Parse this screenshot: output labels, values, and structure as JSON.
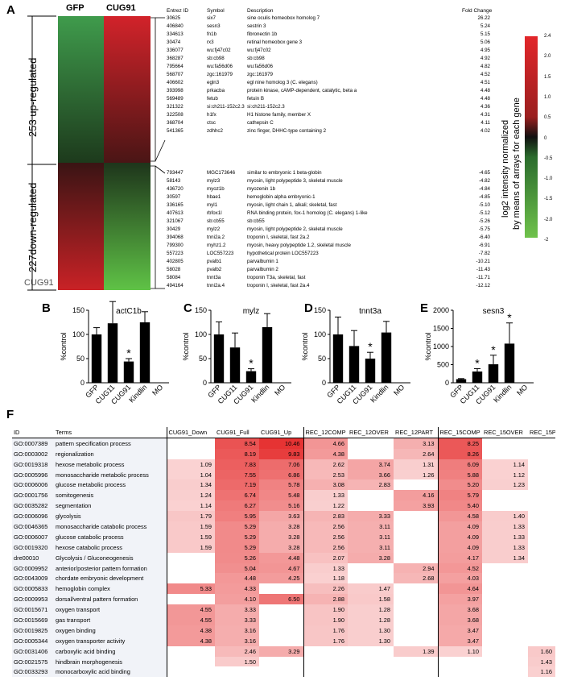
{
  "panel_labels": {
    "a": "A",
    "b": "B",
    "c": "C",
    "d": "D",
    "e": "E",
    "f": "F"
  },
  "heatmap": {
    "col_labels": [
      "GFP",
      "CUG91"
    ],
    "group_up": "253 up-regulated",
    "group_down": "227down-regulated",
    "overlay_text": "CUG91"
  },
  "gene_table": {
    "headers": [
      "Entrez ID",
      "Symbol",
      "Description",
      "Fold Change"
    ],
    "up": [
      [
        "30625",
        "six7",
        "sine oculis homeobox homolog 7",
        "26.22"
      ],
      [
        "406840",
        "sesn3",
        "sestrin 3",
        "5.24"
      ],
      [
        "334613",
        "fn1b",
        "fibronectin 1b",
        "5.15"
      ],
      [
        "30474",
        "rx3",
        "retinal homeobox gene 3",
        "5.06"
      ],
      [
        "336077",
        "wu:fj47c02",
        "wu:fj47c02",
        "4.95"
      ],
      [
        "368287",
        "sb:cb98",
        "sb:cb98",
        "4.92"
      ],
      [
        "795664",
        "wu:fa56d06",
        "wu:fa56d06",
        "4.82"
      ],
      [
        "568707",
        "zgc:161979",
        "zgc:161979",
        "4.52"
      ],
      [
        "406602",
        "egln3",
        "egl nine homolog 3 (C. elegans)",
        "4.51"
      ],
      [
        "393998",
        "prkacba",
        "protein kinase, cAMP-dependent, catalytic, beta a",
        "4.48"
      ],
      [
        "569489",
        "fetub",
        "fetuin B",
        "4.48"
      ],
      [
        "321322",
        "si:ch211-152c2.3",
        "si:ch211-152c2.3",
        "4.36"
      ],
      [
        "322508",
        "h1fx",
        "H1 histone family, member X",
        "4.31"
      ],
      [
        "368704",
        "ctsc",
        "cathepsin C",
        "4.11"
      ],
      [
        "541365",
        "zdhhc2",
        "zinc finger, DHHC-type containing 2",
        "4.02"
      ]
    ],
    "down": [
      [
        "793447",
        "MGC173646",
        "similar to embryonic 1 beta-globin",
        "-4.65"
      ],
      [
        "58143",
        "mylz3",
        "myosin, light polypeptide 3, skeletal muscle",
        "-4.82"
      ],
      [
        "436720",
        "myoz1b",
        "myozenin 1b",
        "-4.84"
      ],
      [
        "30597",
        "hbae1",
        "hemoglobin alpha embryonic-1",
        "-4.85"
      ],
      [
        "336165",
        "myl1",
        "myosin, light chain 1, alkali; skeletal, fast",
        "-5.10"
      ],
      [
        "407613",
        "rbfox1l",
        "RNA binding protein, fox-1 homolog (C. elegans) 1-like",
        "-5.12"
      ],
      [
        "321067",
        "sb:cb55",
        "sb:cb55",
        "-5.26"
      ],
      [
        "30429",
        "mylz2",
        "myosin, light polypeptide 2, skeletal muscle",
        "-5.75"
      ],
      [
        "394068",
        "tnni2a.2",
        "troponin I, skeletal, fast 2a.2",
        "-6.40"
      ],
      [
        "799300",
        "myhz1.2",
        "myosin, heavy polypeptide 1.2, skeletal muscle",
        "-6.91"
      ],
      [
        "557223",
        "LOC557223",
        "hypothetical protein LOC557223",
        "-7.82"
      ],
      [
        "402805",
        "pvalb1",
        "parvalbumin 1",
        "-10.21"
      ],
      [
        "58028",
        "pvalb2",
        "parvalbumin 2",
        "-11.43"
      ],
      [
        "58084",
        "tnnt3a",
        "troponin T3a, skeletal, fast",
        "-11.71"
      ],
      [
        "494164",
        "tnni2a.4",
        "troponin I, skeletal, fast 2a.4",
        "-12.12"
      ]
    ]
  },
  "colorbar": {
    "ticks": [
      "2.4",
      "2.0",
      "1.5",
      "1.0",
      "0.5",
      "0",
      "-0.5",
      "-1.0",
      "-1.5",
      "-2.0",
      "-2"
    ],
    "label_line1": "log2 intensity normalized",
    "label_line2": "by means of arrays for each gene",
    "colors": [
      "#e2262a",
      "#111111",
      "#6fc24b"
    ]
  },
  "chart_data": [
    {
      "type": "bar",
      "title": "actC1b",
      "ylabel": "%control",
      "categories": [
        "GFP",
        "CUG11",
        "CUG91",
        "Kindlin",
        "MO"
      ],
      "values": [
        100,
        123,
        44,
        125,
        null
      ],
      "errors": [
        14,
        45,
        6,
        22,
        null
      ],
      "ylim": [
        0,
        150
      ],
      "yticks": [
        "0",
        "50",
        "100",
        "150"
      ],
      "star_index": 2
    },
    {
      "type": "bar",
      "title": "mylz",
      "ylabel": "%control",
      "categories": [
        "GFP",
        "CUG11",
        "CUG91",
        "Kindlin",
        "MO"
      ],
      "values": [
        100,
        73,
        24,
        115,
        null
      ],
      "errors": [
        26,
        30,
        5,
        28,
        null
      ],
      "ylim": [
        0,
        150
      ],
      "yticks": [
        "0",
        "50",
        "100",
        "150"
      ],
      "star_index": 2
    },
    {
      "type": "bar",
      "title": "tnnt3a",
      "ylabel": "%control",
      "categories": [
        "GFP",
        "CUG11",
        "CUG91",
        "Kindlin",
        "MO"
      ],
      "values": [
        100,
        76,
        50,
        104,
        null
      ],
      "errors": [
        36,
        32,
        13,
        23,
        null
      ],
      "ylim": [
        0,
        150
      ],
      "yticks": [
        "0",
        "50",
        "100",
        "150"
      ],
      "star_index": 2
    },
    {
      "type": "bar",
      "title": "sesn3",
      "ylabel": "%control",
      "categories": [
        "GFP",
        "CUG11",
        "CUG91",
        "Kindlin",
        "MO"
      ],
      "values": [
        100,
        310,
        510,
        1080,
        null
      ],
      "errors": [
        15,
        80,
        250,
        570,
        null
      ],
      "ylim": [
        0,
        2000
      ],
      "yticks": [
        "0",
        "500",
        "1000",
        "1500",
        "2000"
      ],
      "star_indices": [
        1,
        2,
        3
      ]
    }
  ],
  "table_f": {
    "headers": [
      "ID",
      "Terms",
      "CUG91_Down",
      "CUG91_Full",
      "CUG91_Up",
      "REC_12COMP",
      "REC_12OVER",
      "REC_12PART",
      "REC_15COMP",
      "REC_15OVER",
      "REC_15PART"
    ],
    "rows": [
      [
        "GO:0007389",
        "pattern specification process",
        "",
        "8.54",
        "10.46",
        "4.66",
        "",
        "3.13",
        "8.25",
        "",
        ""
      ],
      [
        "GO:0003002",
        "regionalization",
        "",
        "8.19",
        "9.83",
        "4.38",
        "",
        "2.64",
        "8.26",
        "",
        ""
      ],
      [
        "GO:0019318",
        "hexose metabolic process",
        "1.09",
        "7.83",
        "7.06",
        "2.62",
        "3.74",
        "1.31",
        "6.09",
        "1.14",
        ""
      ],
      [
        "GO:0005996",
        "monosaccharide metabolic process",
        "1.04",
        "7.55",
        "6.86",
        "2.53",
        "3.66",
        "1.26",
        "5.88",
        "1.12",
        ""
      ],
      [
        "GO:0006006",
        "glucose metabolic process",
        "1.34",
        "7.19",
        "5.78",
        "3.08",
        "2.83",
        "",
        "5.20",
        "1.23",
        ""
      ],
      [
        "GO:0001756",
        "somitogenesis",
        "1.24",
        "6.74",
        "5.48",
        "1.33",
        "",
        "4.16",
        "5.79",
        "",
        ""
      ],
      [
        "GO:0035282",
        "segmentation",
        "1.14",
        "6.27",
        "5.16",
        "1.22",
        "",
        "3.93",
        "5.40",
        "",
        ""
      ],
      [
        "GO:0006096",
        "glycolysis",
        "1.79",
        "5.95",
        "3.63",
        "2.83",
        "3.33",
        "",
        "4.58",
        "1.40",
        ""
      ],
      [
        "GO:0046365",
        "monosaccharide catabolic process",
        "1.59",
        "5.29",
        "3.28",
        "2.56",
        "3.11",
        "",
        "4.09",
        "1.33",
        ""
      ],
      [
        "GO:0006007",
        "glucose catabolic process",
        "1.59",
        "5.29",
        "3.28",
        "2.56",
        "3.11",
        "",
        "4.09",
        "1.33",
        ""
      ],
      [
        "GO:0019320",
        "hexose catabolic process",
        "1.59",
        "5.29",
        "3.28",
        "2.56",
        "3.11",
        "",
        "4.09",
        "1.33",
        ""
      ],
      [
        "dre00010",
        "Glycolysis / Gluconeogenesis",
        "",
        "5.26",
        "4.48",
        "2.07",
        "3.28",
        "",
        "4.17",
        "1.34",
        ""
      ],
      [
        "GO:0009952",
        "anterior/posterior pattern formation",
        "",
        "5.04",
        "4.67",
        "1.33",
        "",
        "2.94",
        "4.52",
        "",
        ""
      ],
      [
        "GO:0043009",
        "chordate embryonic development",
        "",
        "4.48",
        "4.25",
        "1.18",
        "",
        "2.68",
        "4.03",
        "",
        ""
      ],
      [
        "GO:0005833",
        "hemoglobin complex",
        "5.33",
        "4.33",
        "",
        "2.26",
        "1.47",
        "",
        "4.64",
        "",
        ""
      ],
      [
        "GO:0009953",
        "dorsal/ventral pattern formation",
        "",
        "4.10",
        "6.50",
        "2.88",
        "1.58",
        "",
        "3.97",
        "",
        ""
      ],
      [
        "GO:0015671",
        "oxygen transport",
        "4.55",
        "3.33",
        "",
        "1.90",
        "1.28",
        "",
        "3.68",
        "",
        ""
      ],
      [
        "GO:0015669",
        "gas transport",
        "4.55",
        "3.33",
        "",
        "1.90",
        "1.28",
        "",
        "3.68",
        "",
        ""
      ],
      [
        "GO:0019825",
        "oxygen binding",
        "4.38",
        "3.16",
        "",
        "1.76",
        "1.30",
        "",
        "3.47",
        "",
        ""
      ],
      [
        "GO:0005344",
        "oxygen transporter activity",
        "4.38",
        "3.16",
        "",
        "1.76",
        "1.30",
        "",
        "3.47",
        "",
        ""
      ],
      [
        "GO:0031406",
        "carboxylic acid binding",
        "",
        "2.46",
        "3.29",
        "",
        "",
        "1.39",
        "1.10",
        "",
        "1.60"
      ],
      [
        "GO:0021575",
        "hindbrain morphogenesis",
        "",
        "1.50",
        "",
        "",
        "",
        "",
        "",
        "",
        "1.43"
      ],
      [
        "GO:0033293",
        "monocarboxylic acid binding",
        "",
        "",
        "",
        "",
        "",
        "",
        "",
        "",
        "1.16"
      ]
    ]
  }
}
